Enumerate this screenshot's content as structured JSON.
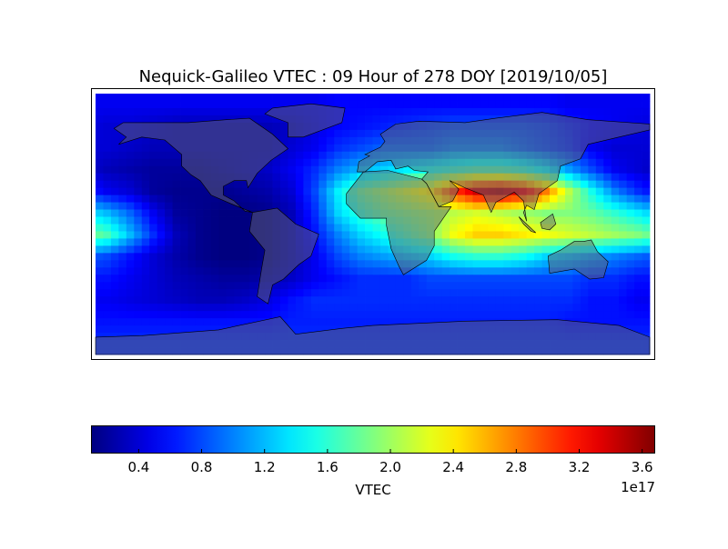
{
  "chart_data": {
    "type": "heatmap",
    "title": "Nequick-Galileo VTEC : 09 Hour of 278 DOY [2019/10/05]",
    "colormap": "jet",
    "projection": "cylindrical map, world coastlines and country borders",
    "lon_range": [
      -180,
      180
    ],
    "lat_range": [
      -90,
      90
    ],
    "grid_lon_centers": [
      -172.5,
      -157.5,
      -142.5,
      -127.5,
      -112.5,
      -97.5,
      -82.5,
      -67.5,
      -52.5,
      -37.5,
      -22.5,
      -7.5,
      7.5,
      22.5,
      37.5,
      52.5,
      67.5,
      82.5,
      97.5,
      112.5,
      127.5,
      142.5,
      157.5,
      172.5
    ],
    "grid_lat_centers": [
      82.5,
      67.5,
      52.5,
      37.5,
      22.5,
      7.5,
      -7.5,
      -22.5,
      -37.5,
      -52.5,
      -67.5,
      -82.5
    ],
    "value_scale": "1e17",
    "values": [
      [
        0.5,
        0.5,
        0.5,
        0.5,
        0.5,
        0.5,
        0.5,
        0.5,
        0.5,
        0.5,
        0.55,
        0.55,
        0.55,
        0.55,
        0.55,
        0.55,
        0.55,
        0.55,
        0.55,
        0.55,
        0.5,
        0.5,
        0.5,
        0.5
      ],
      [
        0.4,
        0.4,
        0.35,
        0.3,
        0.3,
        0.3,
        0.3,
        0.3,
        0.35,
        0.45,
        0.55,
        0.6,
        0.65,
        0.7,
        0.75,
        0.8,
        0.8,
        0.8,
        0.8,
        0.75,
        0.65,
        0.55,
        0.5,
        0.45
      ],
      [
        0.4,
        0.35,
        0.3,
        0.3,
        0.3,
        0.3,
        0.3,
        0.3,
        0.4,
        0.5,
        0.7,
        0.8,
        0.9,
        0.9,
        0.9,
        1.0,
        1.0,
        1.0,
        0.9,
        0.8,
        0.7,
        0.5,
        0.4,
        0.4
      ],
      [
        0.3,
        0.25,
        0.2,
        0.2,
        0.2,
        0.25,
        0.3,
        0.35,
        0.5,
        0.7,
        1.0,
        1.2,
        1.3,
        1.4,
        1.5,
        1.6,
        1.7,
        1.7,
        1.6,
        1.4,
        1.1,
        0.8,
        0.5,
        0.4
      ],
      [
        0.5,
        0.4,
        0.2,
        0.15,
        0.15,
        0.15,
        0.2,
        0.25,
        0.4,
        0.8,
        1.4,
        1.8,
        2.0,
        2.2,
        2.4,
        3.0,
        3.4,
        3.5,
        3.3,
        2.8,
        2.1,
        1.5,
        1.0,
        0.7
      ],
      [
        1.2,
        0.9,
        0.5,
        0.2,
        0.15,
        0.1,
        0.1,
        0.15,
        0.3,
        0.7,
        1.3,
        1.6,
        1.8,
        1.9,
        2.0,
        2.1,
        2.2,
        2.1,
        2.0,
        1.9,
        1.9,
        1.8,
        1.6,
        1.4
      ],
      [
        1.7,
        1.2,
        0.7,
        0.3,
        0.15,
        0.1,
        0.1,
        0.15,
        0.3,
        0.6,
        1.0,
        1.3,
        1.5,
        1.7,
        1.9,
        2.3,
        2.5,
        2.5,
        2.4,
        2.3,
        2.2,
        2.1,
        2.0,
        1.9
      ],
      [
        0.8,
        0.6,
        0.4,
        0.25,
        0.15,
        0.1,
        0.1,
        0.15,
        0.3,
        0.5,
        0.8,
        1.0,
        1.1,
        1.2,
        1.3,
        1.5,
        1.6,
        1.6,
        1.5,
        1.3,
        1.2,
        1.1,
        1.0,
        0.9
      ],
      [
        0.6,
        0.5,
        0.4,
        0.3,
        0.25,
        0.2,
        0.2,
        0.25,
        0.35,
        0.5,
        0.6,
        0.7,
        0.7,
        0.7,
        0.8,
        0.8,
        0.8,
        0.8,
        0.8,
        0.8,
        0.8,
        0.7,
        0.7,
        0.6
      ],
      [
        0.5,
        0.45,
        0.4,
        0.35,
        0.3,
        0.3,
        0.35,
        0.45,
        0.6,
        0.7,
        0.7,
        0.7,
        0.7,
        0.7,
        0.7,
        0.7,
        0.7,
        0.7,
        0.7,
        0.7,
        0.7,
        0.6,
        0.6,
        0.5
      ],
      [
        0.6,
        0.6,
        0.6,
        0.6,
        0.6,
        0.6,
        0.6,
        0.6,
        0.65,
        0.65,
        0.65,
        0.65,
        0.65,
        0.65,
        0.65,
        0.65,
        0.65,
        0.65,
        0.65,
        0.65,
        0.6,
        0.6,
        0.6,
        0.6
      ],
      [
        0.7,
        0.7,
        0.7,
        0.7,
        0.7,
        0.7,
        0.7,
        0.7,
        0.7,
        0.7,
        0.7,
        0.7,
        0.7,
        0.7,
        0.7,
        0.7,
        0.7,
        0.7,
        0.7,
        0.7,
        0.7,
        0.7,
        0.7,
        0.7
      ]
    ],
    "colorbar": {
      "label": "VTEC",
      "offset_text": "1e17",
      "range": [
        0.1,
        3.68
      ],
      "ticks": [
        "0.4",
        "0.8",
        "1.2",
        "1.6",
        "2.0",
        "2.4",
        "2.8",
        "3.2",
        "3.6"
      ],
      "orientation": "horizontal"
    }
  }
}
